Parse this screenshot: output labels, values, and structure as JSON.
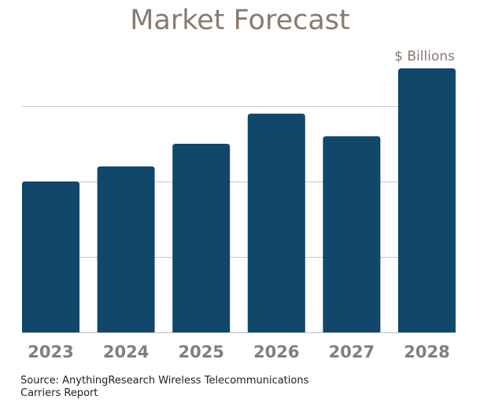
{
  "chart_data": {
    "type": "bar",
    "title": "Market Forecast",
    "ylabel": "$ Billions",
    "categories": [
      "2023",
      "2024",
      "2025",
      "2026",
      "2027",
      "2028"
    ],
    "values": [
      2.0,
      2.2,
      2.5,
      2.9,
      2.6,
      3.5
    ],
    "ylim": [
      0,
      4
    ],
    "grid": true,
    "bar_color": "#10476b",
    "source": "Source: AnythingResearch Wireless Telecommunications\n Carriers  Report"
  }
}
